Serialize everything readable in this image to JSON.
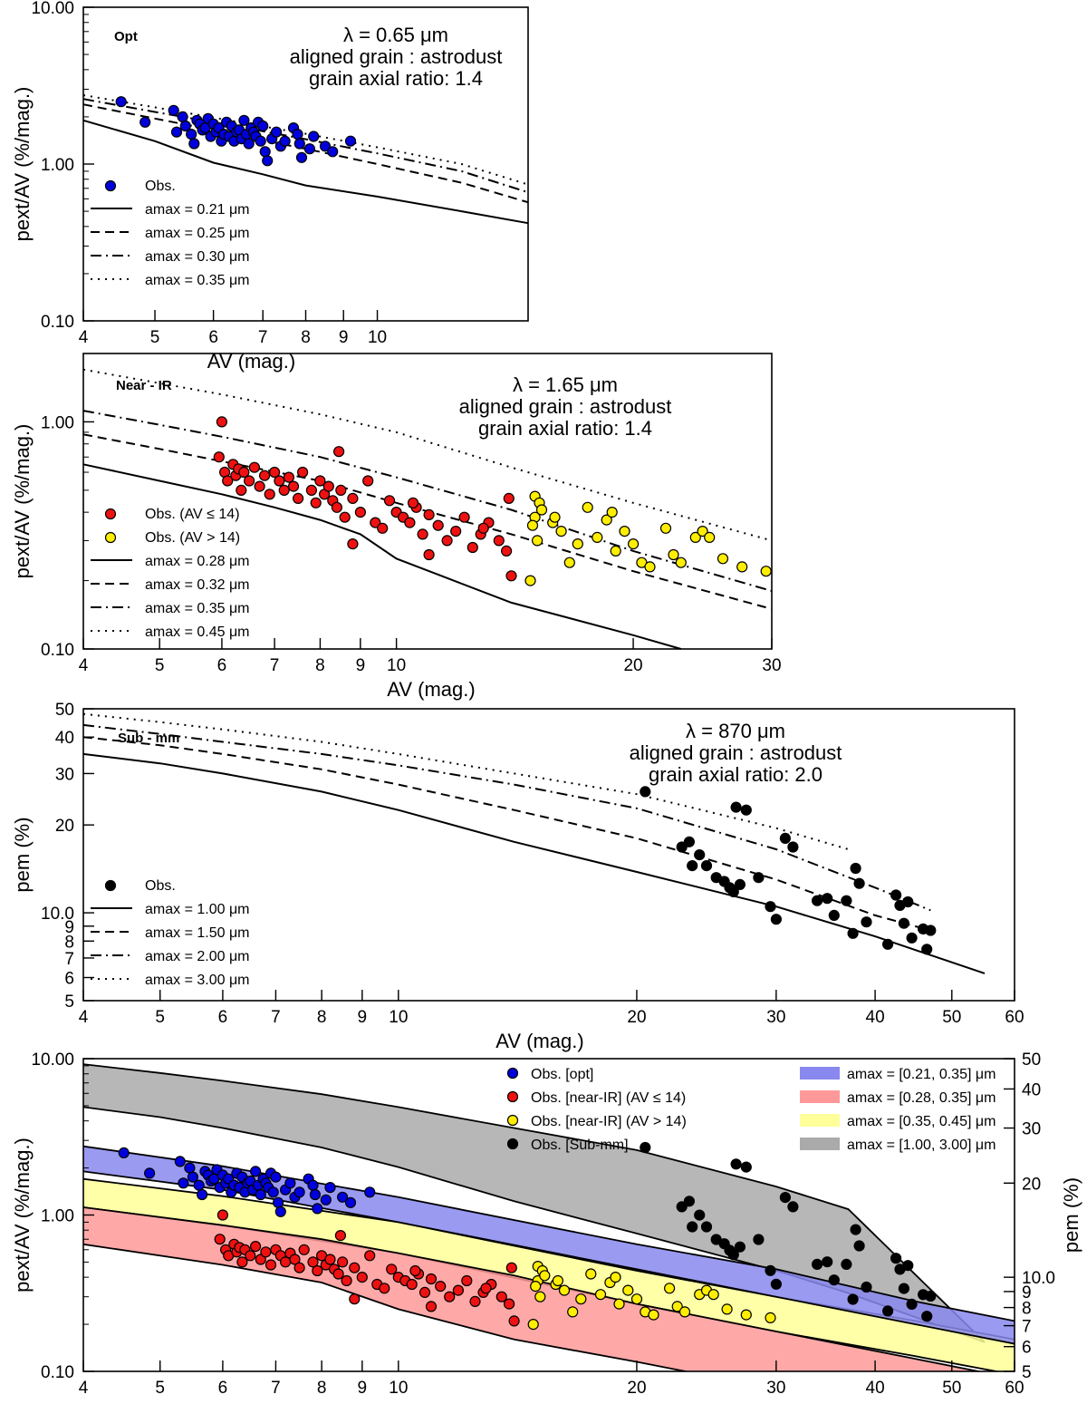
{
  "chart_data": [
    {
      "id": "opt",
      "type": "scatter",
      "panel_label": "Opt",
      "annotation": [
        "λ = 0.65 μm",
        "aligned grain : astrodust",
        "grain axial ratio: 1.4"
      ],
      "xlabel": "AV (mag.)",
      "ylabel": "pext/AV (%/mag.)",
      "xscale": "log",
      "yscale": "log",
      "xlim": [
        4,
        16
      ],
      "ylim": [
        0.1,
        10
      ],
      "xticks": [
        4,
        5,
        6,
        7,
        8,
        9,
        10
      ],
      "xtick_labels": [
        "4",
        "5",
        "6",
        "7",
        "8",
        "9",
        "10"
      ],
      "yticks": [
        0.1,
        1,
        10
      ],
      "ytick_labels": [
        "0.10",
        "1.00",
        "10.00"
      ],
      "legend": [
        "Obs.",
        "amax = 0.21 μm",
        "amax = 0.25 μm",
        "amax = 0.30 μm",
        "amax = 0.35 μm"
      ],
      "series": [
        {
          "name": "amax = 0.21 μm",
          "style": "solid",
          "x": [
            4,
            5,
            6,
            7,
            8,
            10,
            13,
            16
          ],
          "y": [
            1.9,
            1.4,
            1.02,
            0.86,
            0.73,
            0.62,
            0.5,
            0.42
          ]
        },
        {
          "name": "amax = 0.25 μm",
          "style": "dashed",
          "x": [
            4,
            5,
            6,
            7,
            8,
            10,
            13,
            16
          ],
          "y": [
            2.4,
            1.95,
            1.65,
            1.42,
            1.25,
            1.0,
            0.76,
            0.57
          ]
        },
        {
          "name": "amax = 0.30 μm",
          "style": "dashdot",
          "x": [
            4,
            5,
            6,
            7,
            8,
            10,
            13,
            16
          ],
          "y": [
            2.6,
            2.15,
            1.85,
            1.62,
            1.44,
            1.17,
            0.9,
            0.66
          ]
        },
        {
          "name": "amax = 0.35 μm",
          "style": "dotted",
          "x": [
            4,
            5,
            6,
            7,
            8,
            10,
            13,
            16
          ],
          "y": [
            2.75,
            2.3,
            1.98,
            1.74,
            1.56,
            1.28,
            1.0,
            0.74
          ]
        }
      ],
      "points": [
        {
          "group": "Obs.",
          "color": "#0000dd",
          "x": [
            4.5,
            4.85,
            5.3,
            5.35,
            5.45,
            5.5,
            5.6,
            5.65,
            5.7,
            5.75,
            5.8,
            5.85,
            5.9,
            5.95,
            6.0,
            6.05,
            6.1,
            6.15,
            6.2,
            6.25,
            6.3,
            6.35,
            6.4,
            6.45,
            6.5,
            6.55,
            6.6,
            6.65,
            6.7,
            6.75,
            6.8,
            6.85,
            6.9,
            6.95,
            7.0,
            7.05,
            7.1,
            7.2,
            7.3,
            7.4,
            7.5,
            7.7,
            7.8,
            7.85,
            7.9,
            8.1,
            8.2,
            8.5,
            8.7,
            9.2
          ],
          "y": [
            2.5,
            1.85,
            2.2,
            1.6,
            2.0,
            1.75,
            1.55,
            1.35,
            1.9,
            1.8,
            1.65,
            1.7,
            1.95,
            1.5,
            1.8,
            1.6,
            1.7,
            1.4,
            1.55,
            1.85,
            1.5,
            1.75,
            1.4,
            1.6,
            1.65,
            1.45,
            1.9,
            1.55,
            1.35,
            1.7,
            1.6,
            1.5,
            1.85,
            1.4,
            1.75,
            1.2,
            1.05,
            1.45,
            1.6,
            1.3,
            1.4,
            1.7,
            1.55,
            1.35,
            1.1,
            1.25,
            1.5,
            1.3,
            1.2,
            1.4
          ]
        }
      ]
    },
    {
      "id": "nir",
      "type": "scatter",
      "panel_label": "Near - IR",
      "annotation": [
        "λ = 1.65 μm",
        "aligned grain : astrodust",
        "grain axial ratio: 1.4"
      ],
      "xlabel": "AV (mag.)",
      "ylabel": "pext/AV (%/mag.)",
      "xscale": "log",
      "yscale": "log",
      "xlim": [
        4,
        30
      ],
      "ylim": [
        0.1,
        2
      ],
      "xticks": [
        4,
        5,
        6,
        7,
        8,
        9,
        10,
        20,
        30
      ],
      "xtick_labels": [
        "4",
        "5",
        "6",
        "7",
        "8",
        "9",
        "10",
        "20",
        "30"
      ],
      "yticks": [
        0.1,
        1
      ],
      "ytick_labels": [
        "0.10",
        "1.00"
      ],
      "legend": [
        "Obs. (AV ≤ 14)",
        "Obs. (AV > 14)",
        "amax = 0.28 μm",
        "amax = 0.32 μm",
        "amax = 0.35 μm",
        "amax = 0.45 μm"
      ],
      "series": [
        {
          "name": "amax = 0.28 μm",
          "style": "solid",
          "x": [
            4,
            5,
            6,
            7,
            8,
            9,
            10,
            14,
            20,
            23
          ],
          "y": [
            0.65,
            0.55,
            0.48,
            0.42,
            0.37,
            0.32,
            0.25,
            0.16,
            0.115,
            0.1
          ]
        },
        {
          "name": "amax = 0.32 μm",
          "style": "dashed",
          "x": [
            4,
            5,
            6,
            8,
            10,
            14,
            20,
            30
          ],
          "y": [
            0.88,
            0.76,
            0.67,
            0.55,
            0.44,
            0.32,
            0.22,
            0.15
          ]
        },
        {
          "name": "amax = 0.35 μm",
          "style": "dashdot",
          "x": [
            4,
            5,
            6,
            8,
            10,
            14,
            20,
            30
          ],
          "y": [
            1.12,
            0.97,
            0.86,
            0.7,
            0.57,
            0.41,
            0.27,
            0.18
          ]
        },
        {
          "name": "amax = 0.45 μm",
          "style": "dotted",
          "x": [
            4,
            5,
            6,
            8,
            10,
            14,
            20,
            30
          ],
          "y": [
            1.7,
            1.48,
            1.32,
            1.08,
            0.9,
            0.63,
            0.44,
            0.3
          ]
        }
      ],
      "points": [
        {
          "group": "Obs. (AV ≤ 14)",
          "color": "#ee1111",
          "x": [
            6.0,
            5.95,
            6.05,
            6.1,
            6.2,
            6.25,
            6.3,
            6.35,
            6.4,
            6.5,
            6.6,
            6.7,
            6.8,
            6.9,
            7.0,
            7.1,
            7.2,
            7.3,
            7.4,
            7.5,
            7.6,
            7.8,
            7.9,
            8.0,
            8.1,
            8.2,
            8.3,
            8.4,
            8.5,
            8.6,
            8.8,
            9.0,
            9.2,
            9.4,
            9.6,
            9.8,
            10.0,
            10.2,
            10.4,
            10.6,
            10.8,
            11.0,
            11.3,
            11.6,
            11.9,
            12.2,
            12.5,
            12.8,
            13.1,
            13.5,
            13.8,
            14.0,
            13.9,
            8.45,
            8.8,
            11.0,
            12.9,
            10.5
          ],
          "y": [
            1.0,
            0.7,
            0.6,
            0.55,
            0.65,
            0.58,
            0.62,
            0.5,
            0.6,
            0.55,
            0.63,
            0.52,
            0.58,
            0.48,
            0.6,
            0.55,
            0.5,
            0.57,
            0.52,
            0.46,
            0.6,
            0.5,
            0.44,
            0.55,
            0.48,
            0.52,
            0.45,
            0.42,
            0.5,
            0.38,
            0.46,
            0.4,
            0.55,
            0.36,
            0.34,
            0.45,
            0.4,
            0.38,
            0.36,
            0.42,
            0.32,
            0.39,
            0.35,
            0.3,
            0.33,
            0.38,
            0.28,
            0.32,
            0.36,
            0.3,
            0.27,
            0.21,
            0.46,
            0.74,
            0.29,
            0.26,
            0.34,
            0.44
          ]
        },
        {
          "group": "Obs. (AV > 14)",
          "color": "#ffee00",
          "x": [
            14.8,
            15.0,
            15.2,
            15.0,
            15.3,
            15.1,
            15.8,
            16.2,
            16.6,
            17.0,
            17.5,
            18.0,
            18.5,
            19.0,
            19.5,
            20.0,
            20.5,
            21.0,
            22.0,
            22.5,
            23.0,
            24.0,
            24.5,
            25.0,
            26.0,
            27.5,
            29.5,
            14.9,
            15.9,
            18.8
          ],
          "y": [
            0.2,
            0.47,
            0.44,
            0.38,
            0.41,
            0.3,
            0.36,
            0.33,
            0.24,
            0.29,
            0.42,
            0.31,
            0.37,
            0.27,
            0.33,
            0.29,
            0.24,
            0.23,
            0.34,
            0.26,
            0.24,
            0.31,
            0.33,
            0.31,
            0.25,
            0.23,
            0.22,
            0.35,
            0.38,
            0.4
          ]
        }
      ]
    },
    {
      "id": "submm",
      "type": "scatter",
      "panel_label": "Sub - mm",
      "annotation": [
        "λ = 870 μm",
        "aligned grain : astrodust",
        "grain axial ratio: 2.0"
      ],
      "xlabel": "AV (mag.)",
      "ylabel": "pem (%)",
      "xscale": "log",
      "yscale": "log",
      "xlim": [
        4,
        60
      ],
      "ylim": [
        5,
        50
      ],
      "xticks": [
        4,
        5,
        6,
        7,
        8,
        9,
        10,
        20,
        30,
        40,
        50,
        60
      ],
      "xtick_labels": [
        "4",
        "5",
        "6",
        "7",
        "8",
        "9",
        "10",
        "20",
        "30",
        "40",
        "50",
        "60"
      ],
      "yticks": [
        5,
        6,
        7,
        8,
        9,
        10,
        20,
        30,
        40,
        50
      ],
      "ytick_labels": [
        "5",
        "6",
        "7",
        "8",
        "9",
        "10.0",
        "20",
        "30",
        "40",
        "50"
      ],
      "legend": [
        "Obs.",
        "amax = 1.00 μm",
        "amax = 1.50 μm",
        "amax = 2.00 μm",
        "amax = 3.00 μm"
      ],
      "series": [
        {
          "name": "amax = 1.00 μm",
          "style": "solid",
          "x": [
            4,
            5,
            6,
            8,
            10,
            14,
            20,
            30,
            40,
            55
          ],
          "y": [
            35,
            32.5,
            30,
            26,
            22.5,
            17.5,
            13.8,
            10.5,
            8.3,
            6.2
          ]
        },
        {
          "name": "amax = 1.50 μm",
          "style": "dashed",
          "x": [
            4,
            5,
            6,
            8,
            10,
            14,
            20,
            30,
            40,
            47
          ],
          "y": [
            40,
            37.5,
            35,
            31,
            27.5,
            22.5,
            18,
            13,
            9.8,
            8.7
          ]
        },
        {
          "name": "amax = 2.00 μm",
          "style": "dashdot",
          "x": [
            4,
            5,
            6,
            8,
            10,
            14,
            20,
            30,
            40,
            47
          ],
          "y": [
            44,
            41,
            38.5,
            35,
            32,
            27.5,
            22.8,
            16.5,
            12.2,
            10.2
          ]
        },
        {
          "name": "amax = 3.00 μm",
          "style": "dotted",
          "x": [
            4,
            5,
            6,
            8,
            10,
            14,
            20,
            30,
            37
          ],
          "y": [
            48,
            45,
            42.5,
            38.5,
            35,
            30,
            25.5,
            19.5,
            16.5
          ]
        }
      ],
      "points": [
        {
          "group": "Obs.",
          "color": "#000000",
          "x": [
            20.5,
            22.8,
            23.5,
            23.3,
            24.0,
            24.5,
            25.2,
            25.8,
            26.2,
            26.5,
            26.7,
            27.0,
            27.5,
            28.5,
            29.5,
            30.0,
            30.8,
            31.5,
            33.8,
            34.8,
            35.5,
            36.8,
            37.5,
            37.8,
            38.2,
            39.0,
            41.5,
            42.5,
            43.0,
            43.5,
            44.0,
            44.5,
            46.0,
            46.5,
            47.0
          ],
          "y": [
            26,
            16.8,
            14.5,
            17.5,
            15.8,
            14.5,
            13.2,
            12.8,
            12.2,
            11.8,
            23,
            12.5,
            22.5,
            13.2,
            10.5,
            9.5,
            18,
            16.8,
            11,
            11.2,
            9.8,
            11,
            8.5,
            14.2,
            12.6,
            9.3,
            7.8,
            11.5,
            10.6,
            9.2,
            10.9,
            8.2,
            8.8,
            7.5,
            8.7
          ]
        }
      ]
    },
    {
      "id": "combined",
      "type": "area",
      "xlabel": "AV (mag.)",
      "ylabel": "pext/AV (%/mag.)",
      "y2label": "pem (%)",
      "xscale": "log",
      "yscale": "log",
      "xlim": [
        4,
        60
      ],
      "ylim": [
        0.1,
        10
      ],
      "y2lim": [
        5,
        50
      ],
      "xticks": [
        4,
        5,
        6,
        7,
        8,
        9,
        10,
        20,
        30,
        40,
        50,
        60
      ],
      "xtick_labels": [
        "4",
        "5",
        "6",
        "7",
        "8",
        "9",
        "10",
        "20",
        "30",
        "40",
        "50",
        "60"
      ],
      "yticks": [
        0.1,
        1,
        10
      ],
      "ytick_labels": [
        "0.10",
        "1.00",
        "10.00"
      ],
      "y2ticks": [
        5,
        6,
        7,
        8,
        9,
        10,
        20,
        30,
        40,
        50
      ],
      "y2tick_labels": [
        "5",
        "6",
        "7",
        "8",
        "9",
        "10.0",
        "20",
        "30",
        "40",
        "50"
      ],
      "legend_points": [
        "Obs. [opt]",
        "Obs. [near-IR] (AV ≤ 14)",
        "Obs. [near-IR] (AV > 14)",
        "Obs. [Sub-mm]"
      ],
      "legend_bands": [
        "amax = [0.21, 0.35] μm",
        "amax = [0.28, 0.35] μm",
        "amax = [0.35, 0.45] μm",
        "amax = [1.00, 3.00] μm"
      ],
      "bands": [
        {
          "name": "amax = [1.00, 3.00] μm",
          "color": "#aaaaaa",
          "axis": "y2",
          "x": [
            4,
            5,
            6,
            8,
            10,
            14,
            20,
            30,
            37,
            55
          ],
          "lower": [
            35,
            32.5,
            30,
            26,
            22.5,
            17.5,
            13.8,
            10.5,
            8.9,
            6.2
          ],
          "upper": [
            48,
            45,
            42.5,
            38.5,
            35,
            30,
            25.5,
            19.5,
            16.5,
            6.2
          ]
        },
        {
          "name": "amax = [0.35, 0.45] μm",
          "color": "#ffff99",
          "axis": "y",
          "x": [
            4,
            6,
            10,
            20,
            30,
            45,
            60
          ],
          "lower": [
            1.12,
            0.86,
            0.57,
            0.27,
            0.18,
            0.125,
            0.095
          ],
          "upper": [
            1.7,
            1.32,
            0.9,
            0.44,
            0.3,
            0.21,
            0.16
          ]
        },
        {
          "name": "amax = [0.21, 0.35] μm",
          "color": "#8888ee",
          "axis": "y",
          "x": [
            4,
            6,
            10,
            20,
            30,
            45,
            60
          ],
          "lower": [
            1.9,
            1.45,
            0.9,
            0.45,
            0.3,
            0.2,
            0.15
          ],
          "upper": [
            2.75,
            2.05,
            1.3,
            0.65,
            0.45,
            0.28,
            0.21
          ]
        },
        {
          "name": "amax = [0.28, 0.35] μm",
          "color": "#ff9999",
          "axis": "y",
          "x": [
            4,
            6,
            8,
            10,
            14,
            20,
            30,
            45,
            60
          ],
          "lower": [
            0.65,
            0.48,
            0.37,
            0.25,
            0.16,
            0.115,
            0.077,
            0.05,
            0.04
          ],
          "upper": [
            1.12,
            0.86,
            0.7,
            0.57,
            0.41,
            0.27,
            0.18,
            0.12,
            0.09
          ]
        }
      ],
      "point_groups": [
        {
          "group": "Obs. [opt]",
          "from": "opt",
          "color": "#0000dd"
        },
        {
          "group": "Obs. [near-IR] (AV ≤ 14)",
          "from": "nir",
          "index": 0,
          "color": "#ee1111"
        },
        {
          "group": "Obs. [near-IR] (AV > 14)",
          "from": "nir",
          "index": 1,
          "color": "#ffee00"
        },
        {
          "group": "Obs. [Sub-mm]",
          "from": "submm",
          "color": "#000000",
          "axis": "y2"
        }
      ]
    }
  ]
}
